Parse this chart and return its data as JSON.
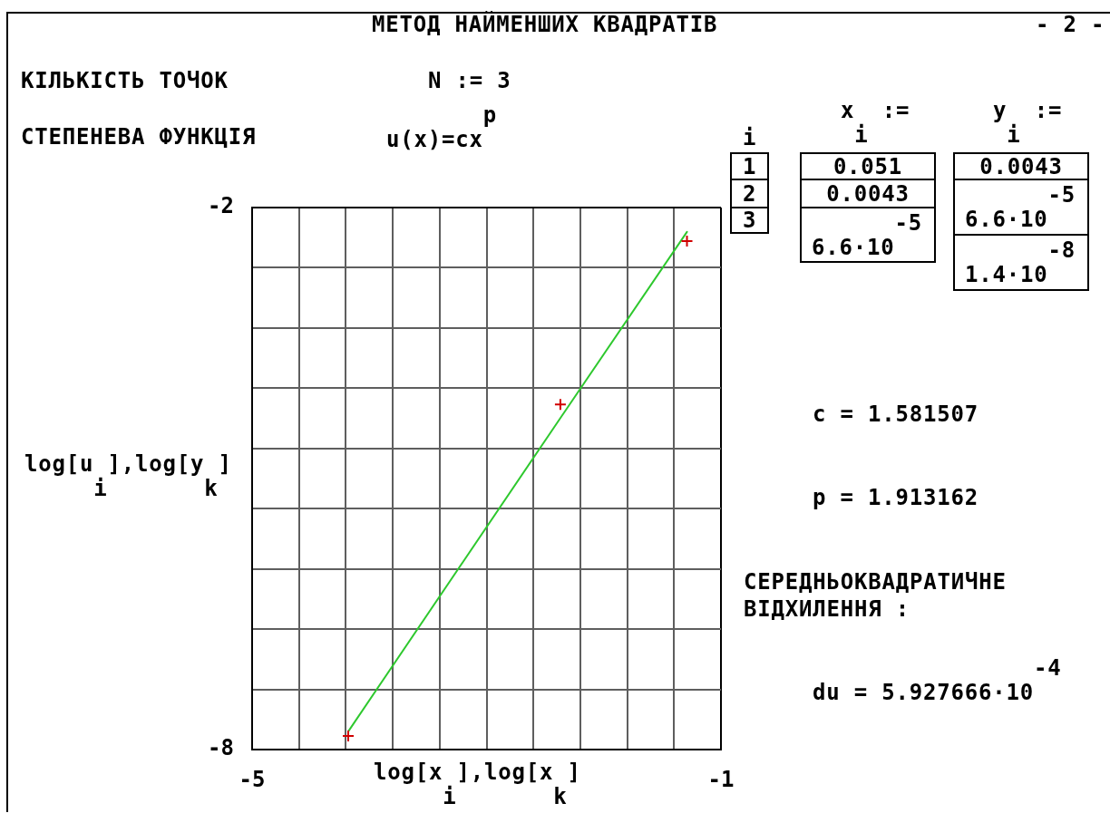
{
  "chart_data": {
    "type": "scatter",
    "title": "МЕТОД НАЙМЕНШИХ КВАДРАТІВ",
    "xlabel": "log[x$_{i}$],log[x$_{k}$]",
    "ylabel": "log[u$_{i}$],log[y$_{k}$]",
    "series": [
      {
        "type": "scatter",
        "color": "#d00000",
        "marker": "cross",
        "x": [
          -1.29,
          -2.37,
          -4.18
        ],
        "values": [
          -2.37,
          -4.18,
          -7.85
        ]
      },
      {
        "type": "line",
        "color": "#2ec82e",
        "x": [
          -4.18,
          -2.37,
          -1.29
        ],
        "values": [
          -7.8,
          -4.33,
          -2.27
        ]
      }
    ],
    "xlim": [
      -5,
      -1
    ],
    "xticks": [
      -5,
      {
        "value": -4.6,
        "label": null
      },
      {
        "value": -4.2,
        "label": null
      },
      {
        "value": -3.8,
        "label": null
      },
      {
        "value": -3.4,
        "label": null
      },
      {
        "value": -3,
        "label": null
      },
      {
        "value": -2.6,
        "label": null
      },
      {
        "value": -2.2,
        "label": null
      },
      {
        "value": -1.8,
        "label": null
      },
      {
        "value": -1.4,
        "label": null
      },
      -1
    ],
    "ylim": [
      -8,
      -2
    ],
    "yticks": [
      -8,
      {
        "value": -7.333,
        "label": null
      },
      {
        "value": -6.667,
        "label": null
      },
      {
        "value": -6,
        "label": null
      },
      {
        "value": -5.333,
        "label": null
      },
      {
        "value": -4.667,
        "label": null
      },
      {
        "value": -4,
        "label": null
      },
      {
        "value": -3.333,
        "label": null
      },
      {
        "value": -2.667,
        "label": null
      },
      -2
    ],
    "grid": true,
    "annotations": [
      "- 2 -",
      "КІЛЬКІСТЬ ТОЧОК",
      "N := 3",
      "СТЕПЕНЕВА ФУНКЦІЯ",
      "u(x)=cx$^{p}$",
      "x$_{i}$ :=",
      "y$_{i}$ :=",
      "i",
      "1",
      "2",
      "3",
      "0.051",
      "0.0043",
      "6.6·10$^{-5}$",
      "0.0043",
      "6.6·10$^{-5}$",
      "1.4·10$^{-8}$",
      "c = 1.581507",
      "p = 1.913162",
      "СЕРЕДНЬОКВАДРАТИЧНЕ ВІДХИЛЕННЯ :",
      "du = 5.927666·10$^{-4}$"
    ]
  }
}
